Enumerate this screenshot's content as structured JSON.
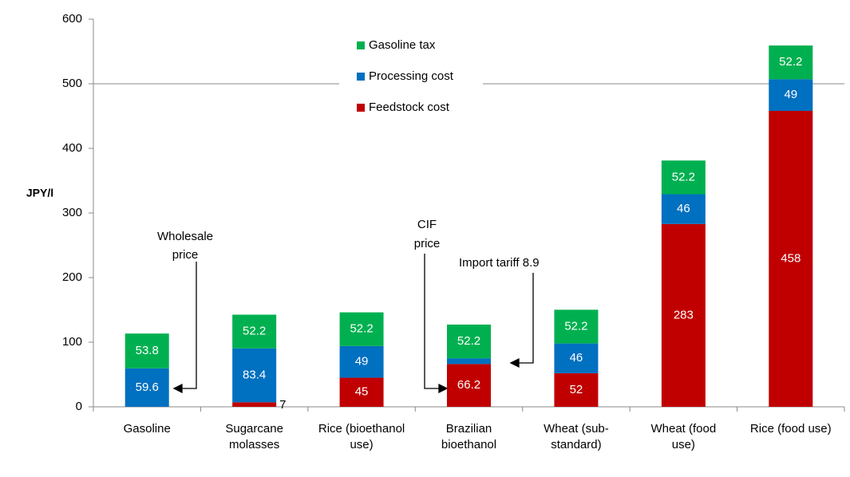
{
  "chart_data": {
    "type": "stacked_bar",
    "y_label": "JPY/l",
    "categories": [
      "Gasoline",
      "Sugarcane molasses",
      "Rice (bioethanol use)",
      "Brazilian bioethanol",
      "Wheat (sub-standard)",
      "Wheat (food use)",
      "Rice (food use)"
    ],
    "series": [
      {
        "name": "Feedstock cost",
        "color": "#c00000",
        "values": [
          null,
          7,
          45,
          66.2,
          52,
          283,
          458
        ]
      },
      {
        "name": "Processing cost",
        "color": "#0070c0",
        "values": [
          59.6,
          83.4,
          49,
          8.9,
          46,
          46,
          49
        ],
        "value_labels": [
          "59.6",
          "83.4",
          "49",
          null,
          "46",
          "46",
          "49"
        ]
      },
      {
        "name": "Gasoline tax",
        "color": "#00b050",
        "values": [
          53.8,
          52.2,
          52.2,
          52.2,
          52.2,
          52.2,
          52.2
        ]
      }
    ],
    "ylim": [
      0,
      600
    ],
    "yticks": [
      0,
      100,
      200,
      300,
      400,
      500,
      600
    ],
    "grid": false,
    "annotations": [
      "Wholesale price",
      "CIF price",
      "Import tariff 8.9"
    ]
  }
}
